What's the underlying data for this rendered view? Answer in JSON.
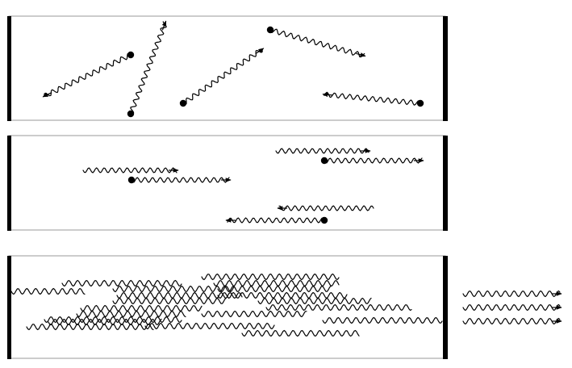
{
  "figure": {
    "panels": [
      {
        "id": "spontaneous-emission",
        "atoms": 5,
        "photons": 5
      },
      {
        "id": "stimulated-emission",
        "atoms": 3,
        "photons": 6
      },
      {
        "id": "laser-cavity",
        "atoms": 0,
        "wave_rows": 16,
        "output_beams": 3
      }
    ],
    "colors": {
      "ink": "#000000",
      "frame": "#9a9a9a",
      "background": "#ffffff"
    }
  }
}
